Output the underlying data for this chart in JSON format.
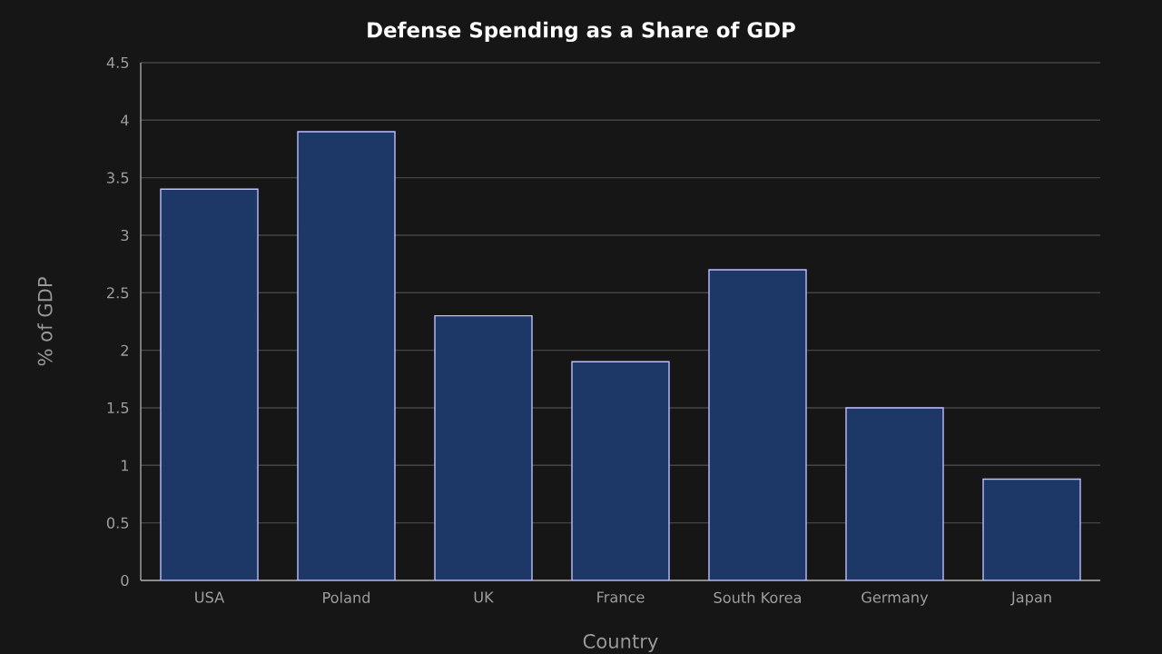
{
  "chart_data": {
    "type": "bar",
    "title": "Defense Spending as a Share of GDP",
    "xlabel": "Country",
    "ylabel": "% of GDP",
    "categories": [
      "USA",
      "Poland",
      "UK",
      "France",
      "South Korea",
      "Germany",
      "Japan"
    ],
    "values": [
      3.4,
      3.9,
      2.3,
      1.9,
      2.7,
      1.5,
      0.88
    ],
    "color": "#1d3766",
    "ylim": [
      0,
      4.5
    ],
    "yticks": [
      0,
      0.5,
      1,
      1.5,
      2,
      2.5,
      3,
      3.5,
      4,
      4.5
    ],
    "grid": "y"
  }
}
